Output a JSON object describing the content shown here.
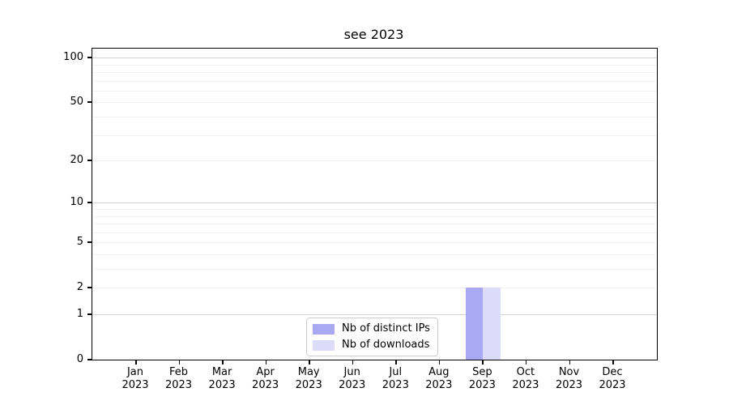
{
  "chart_data": {
    "type": "bar",
    "title": "see 2023",
    "xlabel": "",
    "ylabel": "",
    "categories": [
      {
        "month": "Jan",
        "year": "2023"
      },
      {
        "month": "Feb",
        "year": "2023"
      },
      {
        "month": "Mar",
        "year": "2023"
      },
      {
        "month": "Apr",
        "year": "2023"
      },
      {
        "month": "May",
        "year": "2023"
      },
      {
        "month": "Jun",
        "year": "2023"
      },
      {
        "month": "Jul",
        "year": "2023"
      },
      {
        "month": "Aug",
        "year": "2023"
      },
      {
        "month": "Sep",
        "year": "2023"
      },
      {
        "month": "Oct",
        "year": "2023"
      },
      {
        "month": "Nov",
        "year": "2023"
      },
      {
        "month": "Dec",
        "year": "2023"
      }
    ],
    "series": [
      {
        "name": "Nb of distinct IPs",
        "color": "#a9a9f3",
        "values": [
          0,
          0,
          0,
          0,
          0,
          0,
          0,
          0,
          2,
          0,
          0,
          0
        ]
      },
      {
        "name": "Nb of downloads",
        "color": "#dcdcf9",
        "values": [
          0,
          0,
          0,
          0,
          0,
          0,
          0,
          0,
          2,
          0,
          0,
          0
        ]
      }
    ],
    "yscale": "log1p",
    "ylim": [
      0,
      115
    ],
    "yticks": [
      0,
      1,
      2,
      5,
      10,
      20,
      50,
      100
    ],
    "grid": {
      "major_values": [
        1,
        10,
        100
      ],
      "minor_values": [
        2,
        3,
        4,
        5,
        6,
        7,
        8,
        9,
        20,
        30,
        40,
        50,
        60,
        70,
        80,
        90
      ],
      "major_color": "#d2d2d2",
      "minor_color": "#f0f0f0"
    },
    "legend": {
      "position": "lower center"
    }
  }
}
